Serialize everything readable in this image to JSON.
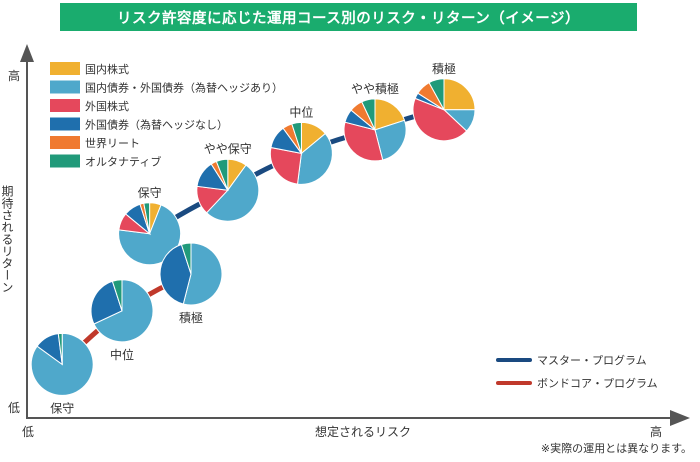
{
  "chart_data": {
    "type": "pie",
    "title": "リスク許容度に応じた運用コース別のリスク・リターン（イメージ）",
    "xlabel": "想定されるリスク",
    "ylabel": "期待されるリターン",
    "x_ticks": {
      "low": "低",
      "high": "高"
    },
    "y_ticks": {
      "low": "低",
      "high": "高"
    },
    "note": "※実際の運用とは異なります。",
    "asset_classes": [
      {
        "name": "国内株式",
        "color": "#f0b030"
      },
      {
        "name": "国内債券・外国債券（為替ヘッジあり）",
        "color": "#4fa8cb"
      },
      {
        "name": "外国株式",
        "color": "#e5485c"
      },
      {
        "name": "外国債券（為替ヘッジなし）",
        "color": "#1f6fad"
      },
      {
        "name": "世界リート",
        "color": "#f07a30"
      },
      {
        "name": "オルタナティブ",
        "color": "#219a7a"
      }
    ],
    "programs": [
      {
        "name": "マスター・プログラム",
        "color": "#1a4a80",
        "courses": [
          {
            "label": "保守",
            "risk": 2.6,
            "return": 5.5,
            "allocation": [
              6,
              71,
              9,
              9,
              2,
              3
            ]
          },
          {
            "label": "やや保守",
            "risk": 4.3,
            "return": 6.8,
            "allocation": [
              10,
              52,
              15,
              14,
              3,
              6
            ]
          },
          {
            "label": "中位",
            "risk": 5.9,
            "return": 7.9,
            "allocation": [
              14,
              38,
              26,
              12,
              5,
              5
            ]
          },
          {
            "label": "やや積極",
            "risk": 7.5,
            "return": 8.6,
            "allocation": [
              20,
              26,
              33,
              7,
              7,
              7
            ]
          },
          {
            "label": "積極",
            "risk": 9.0,
            "return": 9.2,
            "allocation": [
              25,
              12,
              44,
              3,
              8,
              8
            ]
          }
        ]
      },
      {
        "name": "ボンドコア・プログラム",
        "color": "#c0392b",
        "courses": [
          {
            "label": "保守",
            "risk": 0.7,
            "return": 1.6,
            "allocation": [
              0,
              85,
              0,
              13,
              0,
              2
            ]
          },
          {
            "label": "中位",
            "risk": 2.0,
            "return": 3.2,
            "allocation": [
              0,
              68,
              0,
              27,
              0,
              5
            ]
          },
          {
            "label": "積極",
            "risk": 3.5,
            "return": 4.3,
            "allocation": [
              0,
              54,
              0,
              41,
              0,
              5
            ]
          }
        ]
      }
    ]
  }
}
